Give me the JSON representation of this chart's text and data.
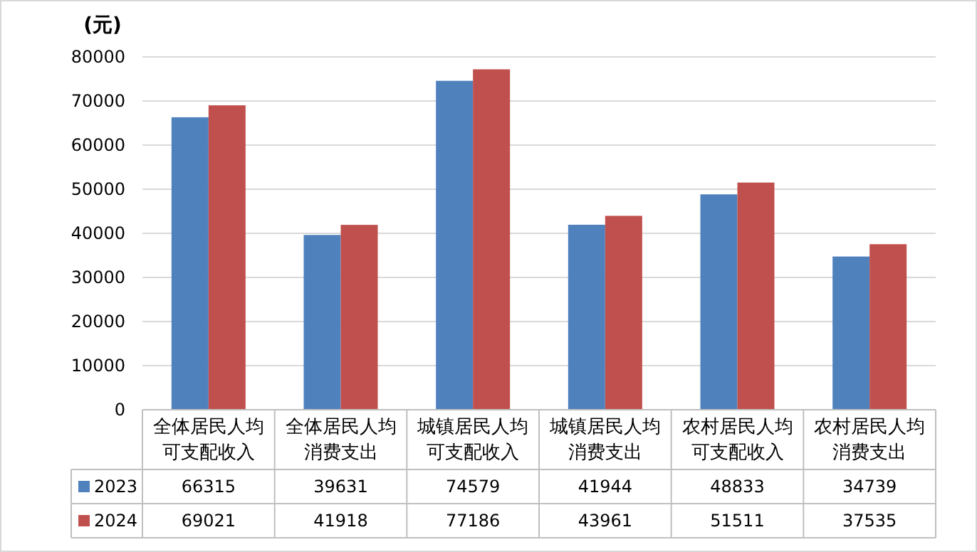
{
  "chart_data": {
    "type": "bar",
    "ylabel": "(元)",
    "categories": [
      "全体居民人均可支配收入",
      "全体居民人均消费支出",
      "城镇居民人均可支配收入",
      "城镇居民人均消费支出",
      "农村居民人均可支配收入",
      "农村居民人均消费支出"
    ],
    "series": [
      {
        "name": "2023",
        "color": "#4f81bd",
        "values": [
          66315,
          39631,
          74579,
          41944,
          48833,
          34739
        ]
      },
      {
        "name": "2024",
        "color": "#c0504d",
        "values": [
          69021,
          41918,
          77186,
          43961,
          51511,
          37535
        ]
      }
    ],
    "ylim": [
      0,
      80000
    ],
    "yticks": [
      0,
      10000,
      20000,
      30000,
      40000,
      50000,
      60000,
      70000,
      80000
    ],
    "grid": "y",
    "legend": "bottom",
    "data_labels": true
  }
}
